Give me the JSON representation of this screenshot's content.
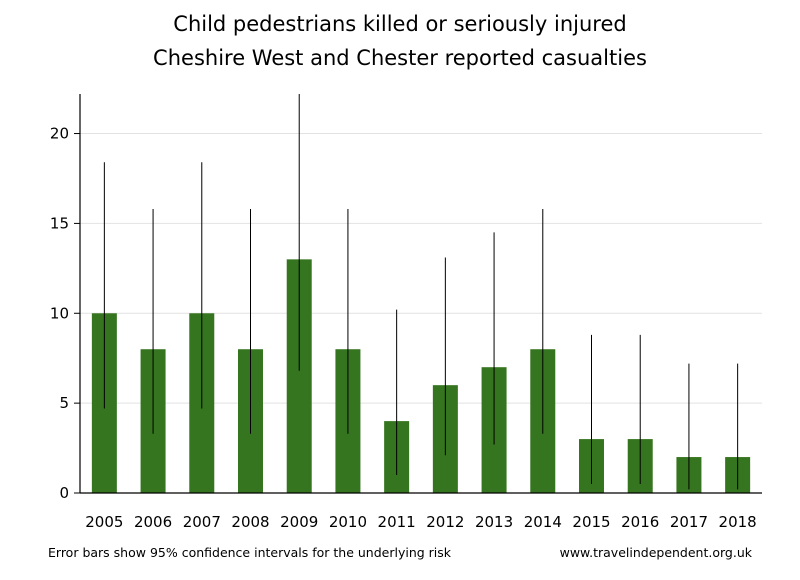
{
  "chart_data": {
    "type": "bar",
    "title": "Child pedestrians killed or seriously injured",
    "subtitle": "Cheshire West and Chester reported casualties",
    "categories": [
      "2005",
      "2006",
      "2007",
      "2008",
      "2009",
      "2010",
      "2011",
      "2012",
      "2013",
      "2014",
      "2015",
      "2016",
      "2017",
      "2018"
    ],
    "values": [
      10,
      8,
      10,
      8,
      13,
      8,
      4,
      6,
      7,
      8,
      3,
      3,
      2,
      2
    ],
    "error_low": [
      4.7,
      3.3,
      4.7,
      3.3,
      6.8,
      3.3,
      1.0,
      2.1,
      2.7,
      3.3,
      0.5,
      0.5,
      0.2,
      0.2
    ],
    "error_high": [
      18.4,
      15.8,
      18.4,
      15.8,
      22.2,
      15.8,
      10.2,
      13.1,
      14.5,
      15.8,
      8.8,
      8.8,
      7.2,
      7.2
    ],
    "ylim": [
      0,
      22.2
    ],
    "yticks": [
      0,
      5,
      10,
      15,
      20
    ],
    "grid": true,
    "bar_color": "#36751f",
    "xlabel": "",
    "ylabel": ""
  },
  "footer": {
    "note": "Error bars show 95% confidence intervals for the underlying risk",
    "source": "www.travelindependent.org.uk"
  }
}
